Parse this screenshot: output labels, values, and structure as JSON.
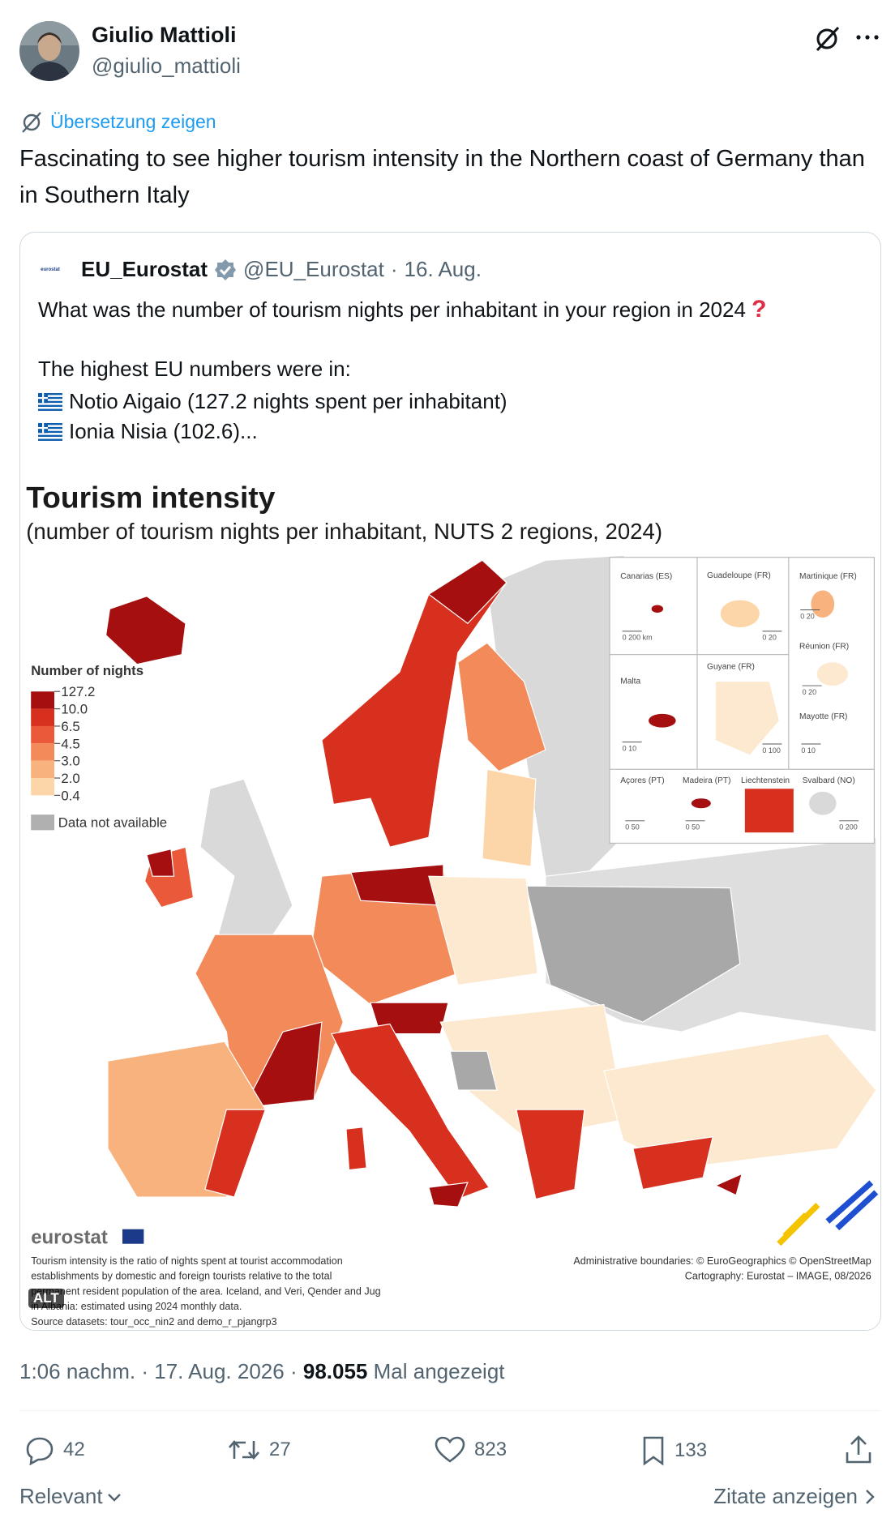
{
  "tweet": {
    "author_name": "Giulio Mattioli",
    "handle": "@giulio_mattioli",
    "translate": "Übersetzung zeigen",
    "text": "Fascinating to see higher tourism intensity in the Northern coast of Germany than in Southern Italy",
    "time": "1:06 nachm.",
    "separator": "·",
    "date": "17. Aug. 2026",
    "views": "98.055",
    "views_label": "Mal angezeigt",
    "replies": "42",
    "reposts": "27",
    "likes": "823",
    "bookmarks": "133",
    "sort": "Relevant",
    "quotes_link": "Zitate anzeigen"
  },
  "quote": {
    "logo_text": "eurostat",
    "author_name": "EU_Eurostat",
    "handle": "@EU_Eurostat",
    "separator": "·",
    "date": "16. Aug.",
    "question": "What was the number of tourism nights per inhabitant in your region in 2024",
    "question_mark": "?",
    "intro": "The highest EU numbers were in:",
    "items": [
      "Notio Aigaio (127.2 nights spent per inhabitant)",
      "Ionia Nisia (102.6)..."
    ],
    "alt_badge": "ALT"
  },
  "map": {
    "title": "Tourism intensity",
    "subtitle": "(number of tourism nights per inhabitant, NUTS 2 regions, 2024)",
    "legend": {
      "title": "Number of nights",
      "breaks": [
        "127.2",
        "10.0",
        "6.5",
        "4.5",
        "3.0",
        "2.0",
        "0.4"
      ],
      "colors": [
        "#a50f0f",
        "#d7301f",
        "#ea5a3a",
        "#f28a5a",
        "#f8b27d",
        "#fcd6a8"
      ],
      "na": "Data not available",
      "na_color": "#b0b0b0"
    },
    "insets": [
      {
        "name": "Canarias (ES)",
        "scale": "0     200 km"
      },
      {
        "name": "Guadeloupe (FR)",
        "scale": "0  20"
      },
      {
        "name": "Martinique (FR)",
        "scale": "0  20"
      },
      {
        "name": "Réunion (FR)",
        "scale": "0  20"
      },
      {
        "name": "Malta",
        "scale": "0  10"
      },
      {
        "name": "Guyane (FR)",
        "scale": "0   100"
      },
      {
        "name": "Mayotte (FR)",
        "scale": "0  10"
      },
      {
        "name": "Açores (PT)",
        "scale": "0  50"
      },
      {
        "name": "Madeira (PT)",
        "scale": "0    50"
      },
      {
        "name": "Liechtenstein"
      },
      {
        "name": "Svalbard (NO)",
        "scale": "0    200"
      }
    ],
    "brand": "eurostat",
    "footnote": [
      "Tourism intensity is the ratio of nights spent at tourist accommodation",
      "establishments by domestic and foreign tourists relative to the total",
      "permanent resident population of the area. Iceland, and Veri, Qender and Jug",
      "in Albania: estimated using 2024 monthly data.",
      "Source datasets: tour_occ_nin2 and demo_r_pjangrp3"
    ],
    "credits": [
      "Administrative boundaries: © EuroGeographics © OpenStreetMap",
      "Cartography: Eurostat – IMAGE, 08/2026"
    ]
  }
}
